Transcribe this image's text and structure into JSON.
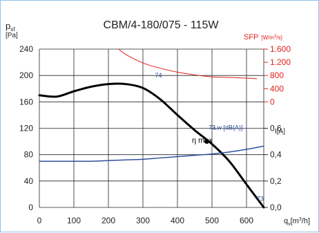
{
  "chart_data": {
    "type": "line",
    "title": "CBM/4-180/075 - 115W",
    "xlabel": {
      "base": "q",
      "sub": "v",
      "unit_open": "[m",
      "unit_sup": "3",
      "unit_close": "/h]"
    },
    "xlim": [
      0,
      650
    ],
    "x_ticks": [
      0,
      100,
      200,
      300,
      400,
      500,
      600
    ],
    "left_axis": {
      "label_base": "p",
      "label_sub": "sf",
      "unit": "[Pa]",
      "ylim": [
        0,
        240
      ],
      "ticks": [
        0,
        40,
        80,
        120,
        160,
        200,
        240
      ]
    },
    "sfp_axis": {
      "label": "SFP",
      "unit_open": "[W/m",
      "unit_sup": "3",
      "unit_close": "/s]",
      "color": "#e0201b",
      "ticks": [
        {
          "label": "0",
          "pa": 160
        },
        {
          "label": "400",
          "pa": 180
        },
        {
          "label": "800",
          "pa": 200
        },
        {
          "label": "1.200",
          "pa": 220
        },
        {
          "label": "1.600",
          "pa": 240
        }
      ]
    },
    "current_axis": {
      "label": "I[A]",
      "color": "#222222",
      "ticks": [
        {
          "label": "0,0",
          "pa": 0
        },
        {
          "label": "0,2",
          "pa": 40
        },
        {
          "label": "0,4",
          "pa": 80
        },
        {
          "label": "0,6",
          "pa": 120
        }
      ]
    },
    "series": [
      {
        "key": "pressure",
        "color": "#000000",
        "width": 3,
        "x": [
          0,
          50,
          100,
          150,
          200,
          250,
          300,
          350,
          400,
          450,
          500,
          550,
          600,
          650
        ],
        "y": [
          170,
          168,
          176,
          183,
          187,
          187,
          181,
          164,
          140,
          117,
          96,
          70,
          35,
          0
        ]
      },
      {
        "key": "sfp",
        "color": "#e0201b",
        "width": 1,
        "x": [
          230,
          250,
          300,
          350,
          400,
          450,
          500,
          550,
          600,
          630
        ],
        "y": [
          240,
          232,
          219,
          211,
          205,
          201,
          198,
          197,
          196,
          195
        ]
      },
      {
        "key": "current",
        "color": "#2f4f9e",
        "width": 1.5,
        "x": [
          0,
          50,
          100,
          150,
          200,
          250,
          300,
          350,
          400,
          450,
          500,
          550,
          600,
          650
        ],
        "y": [
          70,
          70,
          70,
          70,
          71,
          72,
          73,
          75,
          77,
          79,
          81,
          84,
          88,
          93
        ]
      }
    ],
    "annotations": [
      {
        "text": "74",
        "x": 335,
        "y": 197,
        "color": "#2f4f9e"
      },
      {
        "text": "73",
        "x": 490,
        "y": 118,
        "color": "#2f4f9e"
      },
      {
        "text": "Lw [dB(A)]",
        "x": 505,
        "y": 118,
        "color": "#2f4f9e"
      },
      {
        "text": "η max",
        "x": 442,
        "y": 98,
        "color": "#000000"
      },
      {
        "text": "73",
        "x": 630,
        "y": 10,
        "color": "#2f4f9e"
      }
    ],
    "marker": {
      "label": "η max",
      "x": 485,
      "y": 100
    },
    "grid": true
  }
}
